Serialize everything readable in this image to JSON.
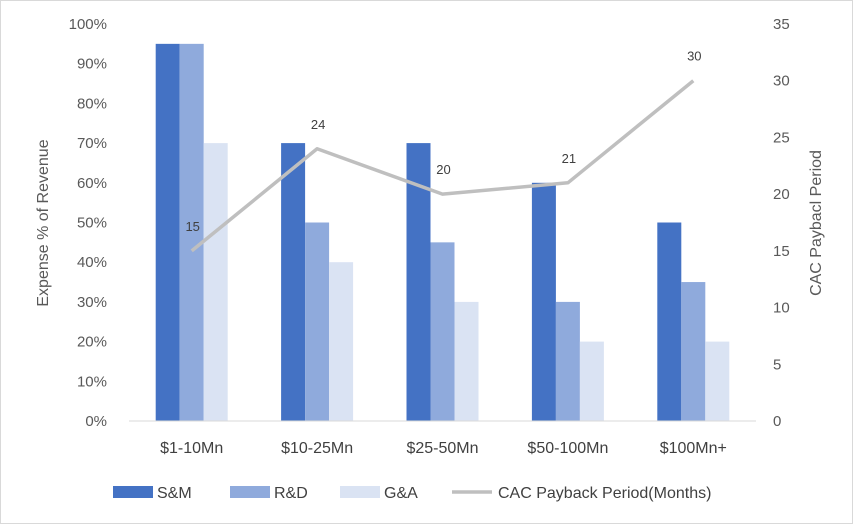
{
  "chart_data": {
    "type": "bar+line",
    "title": "",
    "categories": [
      "$1-10Mn",
      "$10-25Mn",
      "$25-50Mn",
      "$50-100Mn",
      "$100Mn+"
    ],
    "series": [
      {
        "name": "S&M",
        "type": "bar",
        "axis": "left",
        "color": "#4472C4",
        "values": [
          95,
          70,
          70,
          60,
          50
        ]
      },
      {
        "name": "R&D",
        "type": "bar",
        "axis": "left",
        "color": "#8FAADC",
        "values": [
          95,
          50,
          45,
          30,
          35
        ]
      },
      {
        "name": "G&A",
        "type": "bar",
        "axis": "left",
        "color": "#DAE3F3",
        "values": [
          70,
          40,
          30,
          20,
          20
        ]
      },
      {
        "name": "CAC Payback Period(Months)",
        "type": "line",
        "axis": "right",
        "color": "#BFBFBF",
        "values": [
          15,
          24,
          20,
          21,
          30
        ],
        "data_labels": [
          "15",
          "24",
          "20",
          "21",
          "30"
        ]
      }
    ],
    "y_left": {
      "label": "Expense % of Revenue",
      "min": 0,
      "max": 100,
      "step": 10,
      "tick_labels": [
        "0%",
        "10%",
        "20%",
        "30%",
        "40%",
        "50%",
        "60%",
        "70%",
        "80%",
        "90%",
        "100%"
      ]
    },
    "y_right": {
      "label": "CAC Paybacl Period",
      "min": 0,
      "max": 35,
      "step": 5,
      "tick_labels": [
        "0",
        "5",
        "10",
        "15",
        "20",
        "25",
        "30",
        "35"
      ]
    },
    "grid": false,
    "legend": {
      "position": "bottom",
      "entries": [
        "S&M",
        "R&D",
        "G&A",
        "CAC Payback Period(Months)"
      ]
    }
  }
}
